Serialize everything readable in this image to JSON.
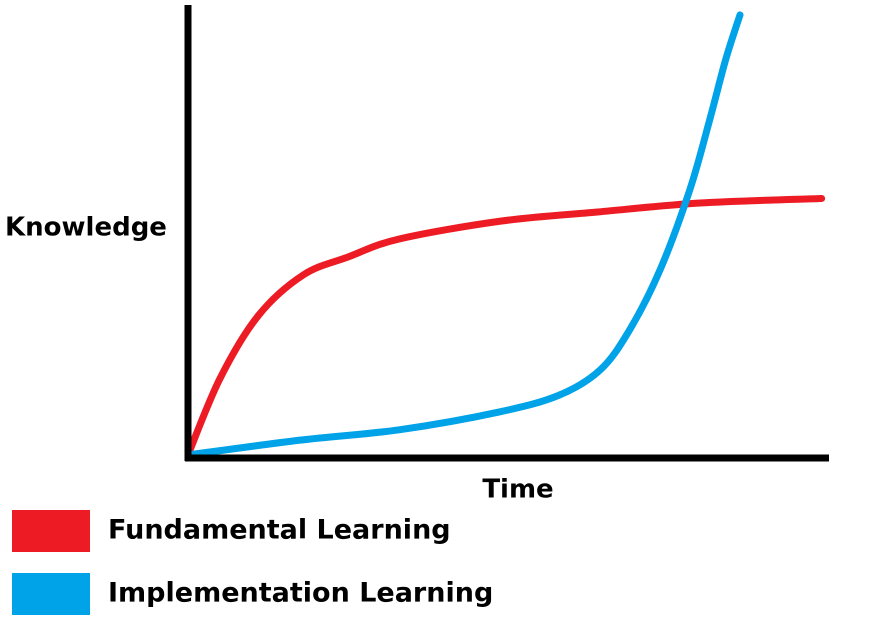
{
  "chart_data": {
    "type": "line",
    "ylabel": "Knowledge",
    "xlabel": "Time",
    "xlim": [
      0,
      100
    ],
    "ylim": [
      0,
      100
    ],
    "series": [
      {
        "name": "Fundamental Learning",
        "color": "#ed1c24",
        "x": [
          0,
          5,
          11,
          18,
          25,
          33,
          49,
          64,
          80,
          99
        ],
        "values": [
          0,
          17,
          31,
          40,
          44,
          48,
          52,
          54,
          56,
          57
        ]
      },
      {
        "name": "Implementation Learning",
        "color": "#00a2e8",
        "x": [
          0,
          17.5,
          33,
          48.75,
          58,
          64.4,
          69,
          73.75,
          78.4,
          81.5,
          84,
          86.25
        ],
        "values": [
          0,
          3.3,
          5.6,
          9.6,
          13.3,
          18.9,
          27.8,
          41.1,
          58.9,
          74.4,
          87.8,
          97.8
        ]
      }
    ]
  }
}
